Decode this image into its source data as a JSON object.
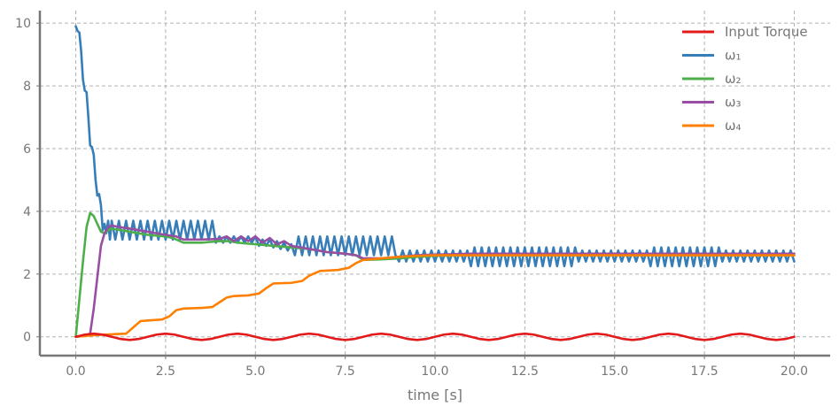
{
  "chart_data": {
    "type": "line",
    "title": "",
    "xlabel": "time [s]",
    "ylabel": "",
    "xlim": [
      -1.0,
      21.0
    ],
    "ylim": [
      -0.6,
      10.4
    ],
    "x_ticks": [
      0.0,
      2.5,
      5.0,
      7.5,
      10.0,
      12.5,
      15.0,
      17.5,
      20.0
    ],
    "x_tick_labels": [
      "0.0",
      "2.5",
      "5.0",
      "7.5",
      "10.0",
      "12.5",
      "15.0",
      "17.5",
      "20.0"
    ],
    "y_ticks": [
      0,
      2,
      4,
      6,
      8,
      10
    ],
    "y_tick_labels": [
      "0",
      "2",
      "4",
      "6",
      "8",
      "10"
    ],
    "grid": true,
    "legend_position": "top-right",
    "series": [
      {
        "name": "Input Torque",
        "color": "#e31a1c",
        "x": [
          0.0,
          0.25,
          0.5,
          0.75,
          1.0,
          1.25,
          1.5,
          1.75,
          2.0,
          2.25,
          2.5,
          2.75,
          3.0,
          3.25,
          3.5,
          3.75,
          4.0,
          4.25,
          4.5,
          4.75,
          5.0,
          5.25,
          5.5,
          5.75,
          6.0,
          6.25,
          6.5,
          6.75,
          7.0,
          7.25,
          7.5,
          7.75,
          8.0,
          8.25,
          8.5,
          8.75,
          9.0,
          9.25,
          9.5,
          9.75,
          10.0,
          10.25,
          10.5,
          10.75,
          11.0,
          11.25,
          11.5,
          11.75,
          12.0,
          12.25,
          12.5,
          12.75,
          13.0,
          13.25,
          13.5,
          13.75,
          14.0,
          14.25,
          14.5,
          14.75,
          15.0,
          15.25,
          15.5,
          15.75,
          16.0,
          16.25,
          16.5,
          16.75,
          17.0,
          17.25,
          17.5,
          17.75,
          18.0,
          18.25,
          18.5,
          18.75,
          19.0,
          19.25,
          19.5,
          19.75,
          20.0
        ],
        "y": [
          0.0,
          0.07,
          0.1,
          0.07,
          0.0,
          -0.07,
          -0.1,
          -0.07,
          0.0,
          0.07,
          0.1,
          0.07,
          0.0,
          -0.07,
          -0.1,
          -0.07,
          0.0,
          0.07,
          0.1,
          0.07,
          0.0,
          -0.07,
          -0.1,
          -0.07,
          0.0,
          0.07,
          0.1,
          0.07,
          0.0,
          -0.07,
          -0.1,
          -0.07,
          0.0,
          0.07,
          0.1,
          0.07,
          0.0,
          -0.07,
          -0.1,
          -0.07,
          0.0,
          0.07,
          0.1,
          0.07,
          0.0,
          -0.07,
          -0.1,
          -0.07,
          0.0,
          0.07,
          0.1,
          0.07,
          0.0,
          -0.07,
          -0.1,
          -0.07,
          0.0,
          0.07,
          0.1,
          0.07,
          0.0,
          -0.07,
          -0.1,
          -0.07,
          0.0,
          0.07,
          0.1,
          0.07,
          0.0,
          -0.07,
          -0.1,
          -0.07,
          0.0,
          0.07,
          0.1,
          0.07,
          0.0,
          -0.07,
          -0.1,
          -0.07,
          0.0
        ]
      },
      {
        "name": "ω₁",
        "color": "#377eb8",
        "x": [
          0.0,
          0.05,
          0.1,
          0.15,
          0.2,
          0.25,
          0.3,
          0.35,
          0.4,
          0.45,
          0.5,
          0.55,
          0.6,
          0.65,
          0.7,
          0.75,
          0.8,
          0.85,
          0.9,
          0.95,
          1.0,
          1.1,
          1.2,
          1.3,
          1.4,
          1.5,
          1.6,
          1.7,
          1.8,
          1.9,
          2.0,
          2.1,
          2.2,
          2.3,
          2.4,
          2.5,
          2.6,
          2.7,
          2.8,
          2.9,
          3.0,
          3.1,
          3.2,
          3.3,
          3.4,
          3.5,
          3.6,
          3.7,
          3.8,
          3.9,
          4.0,
          4.1,
          4.2,
          4.3,
          4.4,
          4.5,
          4.6,
          4.7,
          4.8,
          4.9,
          5.0,
          5.1,
          5.2,
          5.3,
          5.4,
          5.5,
          5.6,
          5.7,
          5.8,
          5.9,
          6.0,
          6.1,
          6.2,
          6.3,
          6.4,
          6.5,
          6.6,
          6.7,
          6.8,
          6.9,
          7.0,
          7.1,
          7.2,
          7.3,
          7.4,
          7.5,
          7.6,
          7.7,
          7.8,
          7.9,
          8.0,
          8.1,
          8.2,
          8.3,
          8.4,
          8.5,
          8.6,
          8.7,
          8.8,
          8.9,
          9.0,
          9.1,
          9.2,
          9.3,
          9.4,
          9.5,
          9.6,
          9.7,
          9.8,
          9.9,
          10.0,
          10.1,
          10.2,
          10.3,
          10.4,
          10.5,
          10.6,
          10.7,
          10.8,
          10.9,
          11.0,
          11.1,
          11.2,
          11.3,
          11.4,
          11.5,
          11.6,
          11.7,
          11.8,
          11.9,
          12.0,
          12.1,
          12.2,
          12.3,
          12.4,
          12.5,
          12.6,
          12.7,
          12.8,
          12.9,
          13.0,
          13.1,
          13.2,
          13.3,
          13.4,
          13.5,
          13.6,
          13.7,
          13.8,
          13.9,
          14.0,
          14.1,
          14.2,
          14.3,
          14.4,
          14.5,
          14.6,
          14.7,
          14.8,
          14.9,
          15.0,
          15.1,
          15.2,
          15.3,
          15.4,
          15.5,
          15.6,
          15.7,
          15.8,
          15.9,
          16.0,
          16.1,
          16.2,
          16.3,
          16.4,
          16.5,
          16.6,
          16.7,
          16.8,
          16.9,
          17.0,
          17.1,
          17.2,
          17.3,
          17.4,
          17.5,
          17.6,
          17.7,
          17.8,
          17.9,
          18.0,
          18.1,
          18.2,
          18.3,
          18.4,
          18.5,
          18.6,
          18.7,
          18.8,
          18.9,
          19.0,
          19.1,
          19.2,
          19.3,
          19.4,
          19.5,
          19.6,
          19.7,
          19.8,
          19.9,
          20.0
        ],
        "y": [
          9.9,
          9.75,
          9.7,
          9.1,
          8.2,
          7.85,
          7.8,
          7.0,
          6.1,
          6.05,
          5.8,
          5.0,
          4.5,
          4.55,
          4.2,
          3.4,
          3.6,
          3.3,
          3.7,
          3.1,
          3.7,
          3.1,
          3.7,
          3.1,
          3.7,
          3.1,
          3.7,
          3.1,
          3.7,
          3.1,
          3.7,
          3.1,
          3.7,
          3.1,
          3.7,
          3.1,
          3.7,
          3.1,
          3.7,
          3.1,
          3.7,
          3.1,
          3.7,
          3.1,
          3.7,
          3.1,
          3.7,
          3.1,
          3.7,
          3.0,
          3.2,
          3.0,
          3.2,
          3.0,
          3.2,
          3.0,
          3.2,
          3.0,
          3.2,
          3.0,
          3.2,
          2.9,
          3.1,
          2.9,
          3.1,
          2.85,
          3.05,
          2.8,
          3.0,
          2.75,
          2.95,
          2.6,
          3.2,
          2.6,
          3.2,
          2.6,
          3.2,
          2.6,
          3.2,
          2.6,
          3.2,
          2.6,
          3.2,
          2.6,
          3.2,
          2.6,
          3.2,
          2.6,
          3.2,
          2.6,
          3.2,
          2.6,
          3.2,
          2.6,
          3.2,
          2.6,
          3.2,
          2.6,
          3.2,
          2.6,
          2.4,
          2.75,
          2.4,
          2.75,
          2.4,
          2.75,
          2.4,
          2.75,
          2.4,
          2.75,
          2.4,
          2.75,
          2.4,
          2.75,
          2.4,
          2.75,
          2.4,
          2.75,
          2.4,
          2.75,
          2.25,
          2.85,
          2.25,
          2.85,
          2.25,
          2.85,
          2.25,
          2.85,
          2.25,
          2.85,
          2.25,
          2.85,
          2.25,
          2.85,
          2.25,
          2.85,
          2.25,
          2.85,
          2.25,
          2.85,
          2.25,
          2.85,
          2.25,
          2.85,
          2.25,
          2.85,
          2.25,
          2.85,
          2.25,
          2.85,
          2.4,
          2.75,
          2.4,
          2.75,
          2.4,
          2.75,
          2.4,
          2.75,
          2.4,
          2.75,
          2.4,
          2.75,
          2.4,
          2.75,
          2.4,
          2.75,
          2.4,
          2.75,
          2.4,
          2.75,
          2.25,
          2.85,
          2.25,
          2.85,
          2.25,
          2.85,
          2.25,
          2.85,
          2.25,
          2.85,
          2.25,
          2.85,
          2.25,
          2.85,
          2.25,
          2.85,
          2.25,
          2.85,
          2.25,
          2.85,
          2.4,
          2.75,
          2.4,
          2.75,
          2.4,
          2.75,
          2.4,
          2.75,
          2.4,
          2.75,
          2.4,
          2.75,
          2.4,
          2.75,
          2.4,
          2.75,
          2.4,
          2.75,
          2.4,
          2.75,
          2.4
        ]
      },
      {
        "name": "ω₂",
        "color": "#4daf4a",
        "x": [
          0.0,
          0.1,
          0.2,
          0.3,
          0.4,
          0.5,
          0.6,
          0.7,
          0.8,
          0.9,
          1.0,
          1.5,
          2.0,
          2.5,
          2.7,
          3.0,
          3.5,
          4.0,
          4.3,
          4.5,
          5.0,
          5.5,
          6.0,
          6.5,
          7.0,
          7.5,
          7.8,
          8.0,
          8.5,
          9.0,
          9.5,
          10.0,
          11.0,
          12.0,
          13.0,
          14.0,
          15.0,
          16.0,
          17.0,
          18.0,
          19.0,
          20.0
        ],
        "y": [
          0.0,
          1.2,
          2.4,
          3.5,
          3.95,
          3.85,
          3.6,
          3.35,
          3.3,
          3.4,
          3.45,
          3.35,
          3.25,
          3.2,
          3.15,
          3.0,
          3.0,
          3.05,
          3.05,
          3.0,
          2.95,
          2.9,
          2.85,
          2.8,
          2.7,
          2.65,
          2.6,
          2.45,
          2.47,
          2.5,
          2.55,
          2.58,
          2.6,
          2.6,
          2.6,
          2.6,
          2.6,
          2.6,
          2.6,
          2.6,
          2.6,
          2.6
        ]
      },
      {
        "name": "ω₃",
        "color": "#984ea3",
        "x": [
          0.0,
          0.3,
          0.4,
          0.5,
          0.6,
          0.7,
          0.8,
          0.9,
          1.0,
          1.2,
          1.5,
          2.0,
          2.5,
          2.8,
          3.0,
          3.5,
          4.0,
          4.2,
          4.4,
          4.6,
          4.8,
          5.0,
          5.2,
          5.4,
          5.6,
          5.8,
          6.0,
          6.5,
          7.0,
          7.5,
          7.8,
          8.0,
          8.5,
          9.0,
          9.5,
          10.0,
          11.0,
          12.0,
          13.0,
          14.0,
          15.0,
          16.0,
          17.0,
          18.0,
          19.0,
          20.0
        ],
        "y": [
          0.0,
          0.05,
          0.1,
          0.9,
          1.9,
          2.9,
          3.3,
          3.5,
          3.55,
          3.5,
          3.45,
          3.35,
          3.25,
          3.2,
          3.1,
          3.1,
          3.12,
          3.2,
          3.05,
          3.2,
          3.05,
          3.2,
          3.0,
          3.15,
          2.95,
          3.05,
          2.9,
          2.8,
          2.7,
          2.65,
          2.6,
          2.5,
          2.5,
          2.55,
          2.6,
          2.62,
          2.65,
          2.65,
          2.65,
          2.65,
          2.65,
          2.65,
          2.65,
          2.65,
          2.65,
          2.65
        ]
      },
      {
        "name": "ω₄",
        "color": "#ff7f00",
        "x": [
          0.0,
          0.5,
          1.0,
          1.4,
          1.6,
          1.8,
          2.0,
          2.4,
          2.6,
          2.8,
          3.0,
          3.5,
          3.8,
          4.0,
          4.2,
          4.4,
          4.8,
          5.1,
          5.3,
          5.5,
          6.0,
          6.3,
          6.5,
          6.8,
          7.3,
          7.6,
          7.8,
          8.0,
          8.5,
          9.0,
          9.5,
          10.0,
          11.0,
          12.0,
          13.0,
          14.0,
          15.0,
          16.0,
          17.0,
          18.0,
          19.0,
          20.0
        ],
        "y": [
          0.0,
          0.05,
          0.08,
          0.1,
          0.3,
          0.5,
          0.52,
          0.55,
          0.65,
          0.85,
          0.9,
          0.92,
          0.95,
          1.1,
          1.25,
          1.3,
          1.32,
          1.38,
          1.55,
          1.7,
          1.72,
          1.78,
          1.95,
          2.1,
          2.13,
          2.2,
          2.35,
          2.45,
          2.5,
          2.55,
          2.58,
          2.6,
          2.6,
          2.6,
          2.6,
          2.6,
          2.6,
          2.6,
          2.6,
          2.6,
          2.6,
          2.6
        ]
      }
    ]
  }
}
